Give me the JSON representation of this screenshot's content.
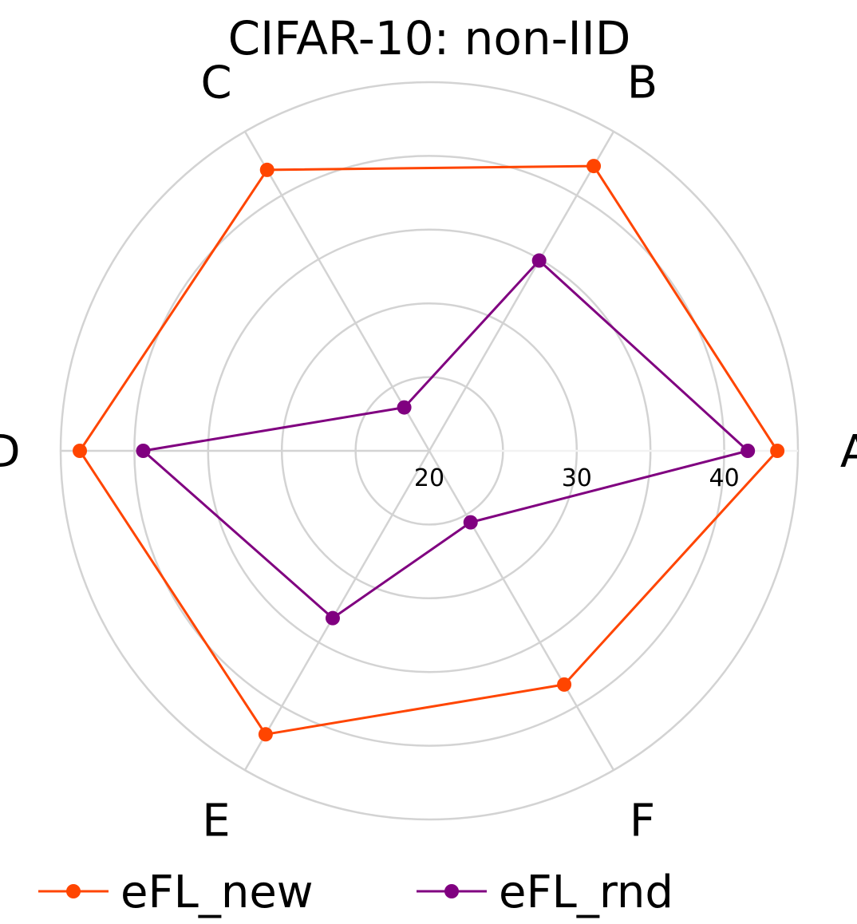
{
  "chart_data": {
    "type": "radar",
    "title": "CIFAR-10: non-IID",
    "categories": [
      "A",
      "B",
      "C",
      "D",
      "E",
      "F"
    ],
    "rlim": [
      20,
      45
    ],
    "rticks": [
      20,
      30,
      40
    ],
    "series": [
      {
        "name": "eFL_new",
        "color": "#ff4500",
        "values": [
          43.6,
          42.3,
          42.0,
          43.7,
          42.2,
          38.3
        ]
      },
      {
        "name": "eFL_rnd",
        "color": "#800080",
        "values": [
          41.6,
          34.9,
          23.4,
          39.4,
          33.1,
          25.6
        ]
      }
    ],
    "grid": true,
    "legend": "bottom"
  }
}
